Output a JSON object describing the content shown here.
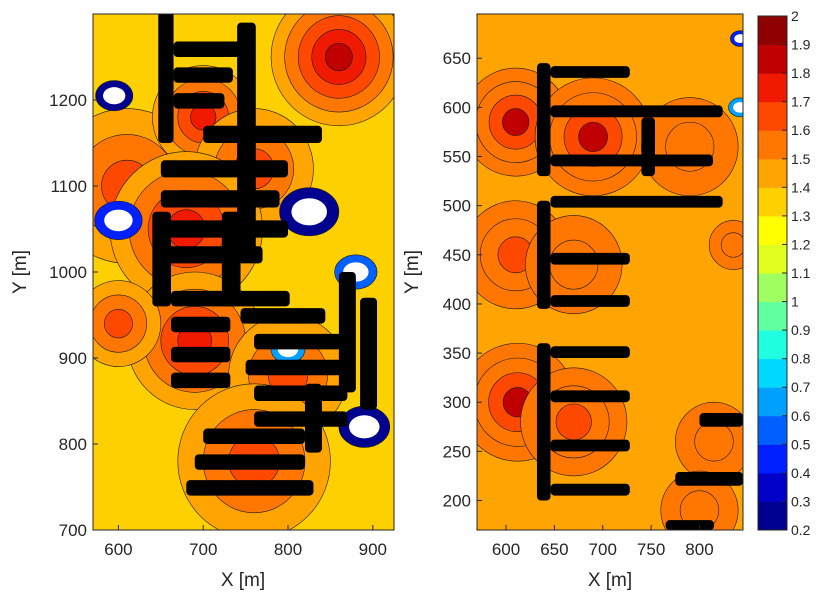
{
  "chart_data": [
    {
      "type": "heatmap",
      "title": "",
      "xlabel": "X [m]",
      "ylabel": "Y [m]",
      "xlim": [
        570,
        925
      ],
      "ylim": [
        700,
        1300
      ],
      "xticks": [
        "600",
        "700",
        "800",
        "900"
      ],
      "yticks": [
        "700",
        "800",
        "900",
        "1000",
        "1100",
        "1200"
      ],
      "ytick_values": [
        700,
        800,
        900,
        1000,
        1100,
        1200
      ],
      "xtick_values": [
        600,
        700,
        800,
        900
      ],
      "grid": false,
      "background_level": 1.35,
      "buildings": [
        {
          "x": 647,
          "y": 1150,
          "w": 18,
          "h": 250
        },
        {
          "x": 740,
          "y": 1020,
          "w": 22,
          "h": 270
        },
        {
          "x": 665,
          "y": 1250,
          "w": 90,
          "h": 18
        },
        {
          "x": 665,
          "y": 1220,
          "w": 70,
          "h": 18
        },
        {
          "x": 665,
          "y": 1190,
          "w": 60,
          "h": 18
        },
        {
          "x": 700,
          "y": 1150,
          "w": 140,
          "h": 20
        },
        {
          "x": 650,
          "y": 1110,
          "w": 150,
          "h": 20
        },
        {
          "x": 650,
          "y": 1075,
          "w": 140,
          "h": 20
        },
        {
          "x": 650,
          "y": 1040,
          "w": 150,
          "h": 20
        },
        {
          "x": 650,
          "y": 1010,
          "w": 120,
          "h": 20
        },
        {
          "x": 640,
          "y": 960,
          "w": 22,
          "h": 110
        },
        {
          "x": 722,
          "y": 960,
          "w": 22,
          "h": 110
        },
        {
          "x": 662,
          "y": 960,
          "w": 140,
          "h": 18
        },
        {
          "x": 662,
          "y": 930,
          "w": 70,
          "h": 18
        },
        {
          "x": 662,
          "y": 895,
          "w": 70,
          "h": 18
        },
        {
          "x": 662,
          "y": 865,
          "w": 70,
          "h": 18
        },
        {
          "x": 744,
          "y": 940,
          "w": 100,
          "h": 18
        },
        {
          "x": 760,
          "y": 910,
          "w": 110,
          "h": 18
        },
        {
          "x": 750,
          "y": 880,
          "w": 120,
          "h": 18
        },
        {
          "x": 760,
          "y": 850,
          "w": 110,
          "h": 18
        },
        {
          "x": 760,
          "y": 820,
          "w": 110,
          "h": 18
        },
        {
          "x": 860,
          "y": 860,
          "w": 20,
          "h": 140
        },
        {
          "x": 885,
          "y": 840,
          "w": 20,
          "h": 130
        },
        {
          "x": 700,
          "y": 800,
          "w": 120,
          "h": 18
        },
        {
          "x": 690,
          "y": 770,
          "w": 130,
          "h": 18
        },
        {
          "x": 680,
          "y": 740,
          "w": 150,
          "h": 18
        },
        {
          "x": 820,
          "y": 790,
          "w": 20,
          "h": 80
        }
      ],
      "hot_zones": [
        {
          "x": 610,
          "y": 1100,
          "r": 90,
          "level": 1.65
        },
        {
          "x": 700,
          "y": 1180,
          "r": 60,
          "level": 1.75
        },
        {
          "x": 760,
          "y": 1120,
          "r": 70,
          "level": 1.7
        },
        {
          "x": 680,
          "y": 1050,
          "r": 90,
          "level": 1.75
        },
        {
          "x": 690,
          "y": 920,
          "r": 80,
          "level": 1.75
        },
        {
          "x": 800,
          "y": 880,
          "r": 70,
          "level": 1.7
        },
        {
          "x": 860,
          "y": 1250,
          "r": 80,
          "level": 1.9
        },
        {
          "x": 760,
          "y": 780,
          "r": 90,
          "level": 1.7
        },
        {
          "x": 600,
          "y": 940,
          "r": 50,
          "level": 1.6
        }
      ],
      "low_zones": [
        {
          "x": 595,
          "y": 1205,
          "r": 22,
          "level": 0.3
        },
        {
          "x": 825,
          "y": 1070,
          "r": 35,
          "level": 0.3
        },
        {
          "x": 600,
          "y": 1060,
          "r": 28,
          "level": 0.4
        },
        {
          "x": 880,
          "y": 1000,
          "r": 25,
          "level": 0.5
        },
        {
          "x": 800,
          "y": 910,
          "r": 20,
          "level": 0.7
        },
        {
          "x": 890,
          "y": 820,
          "r": 30,
          "level": 0.3
        }
      ]
    },
    {
      "type": "heatmap",
      "title": "",
      "xlabel": "X [m]",
      "ylabel": "Y [m]",
      "xlim": [
        570,
        845
      ],
      "ylim": [
        170,
        695
      ],
      "xticks": [
        "600",
        "650",
        "700",
        "750",
        "800"
      ],
      "xtick_values": [
        600,
        650,
        700,
        750,
        800
      ],
      "yticks": [
        "200",
        "250",
        "300",
        "350",
        "400",
        "450",
        "500",
        "550",
        "600",
        "650"
      ],
      "ytick_values": [
        200,
        250,
        300,
        350,
        400,
        450,
        500,
        550,
        600,
        650
      ],
      "grid": false,
      "background_level": 1.4,
      "buildings": [
        {
          "x": 632,
          "y": 530,
          "w": 14,
          "h": 115
        },
        {
          "x": 740,
          "y": 530,
          "w": 14,
          "h": 60
        },
        {
          "x": 632,
          "y": 395,
          "w": 14,
          "h": 110
        },
        {
          "x": 632,
          "y": 200,
          "w": 14,
          "h": 160
        },
        {
          "x": 646,
          "y": 630,
          "w": 82,
          "h": 12
        },
        {
          "x": 646,
          "y": 590,
          "w": 178,
          "h": 12
        },
        {
          "x": 646,
          "y": 540,
          "w": 168,
          "h": 12
        },
        {
          "x": 646,
          "y": 498,
          "w": 178,
          "h": 12
        },
        {
          "x": 646,
          "y": 440,
          "w": 82,
          "h": 12
        },
        {
          "x": 646,
          "y": 397,
          "w": 82,
          "h": 12
        },
        {
          "x": 646,
          "y": 345,
          "w": 82,
          "h": 12
        },
        {
          "x": 646,
          "y": 300,
          "w": 82,
          "h": 12
        },
        {
          "x": 646,
          "y": 250,
          "w": 82,
          "h": 12
        },
        {
          "x": 646,
          "y": 205,
          "w": 82,
          "h": 12
        },
        {
          "x": 800,
          "y": 275,
          "w": 45,
          "h": 14
        },
        {
          "x": 775,
          "y": 215,
          "w": 70,
          "h": 14
        },
        {
          "x": 765,
          "y": 170,
          "w": 50,
          "h": 10
        }
      ],
      "hot_zones": [
        {
          "x": 610,
          "y": 585,
          "r": 55,
          "level": 1.75
        },
        {
          "x": 610,
          "y": 450,
          "r": 55,
          "level": 1.7
        },
        {
          "x": 612,
          "y": 300,
          "r": 60,
          "level": 1.75
        },
        {
          "x": 690,
          "y": 570,
          "r": 60,
          "level": 1.8
        },
        {
          "x": 670,
          "y": 440,
          "r": 50,
          "level": 1.6
        },
        {
          "x": 670,
          "y": 280,
          "r": 55,
          "level": 1.65
        },
        {
          "x": 790,
          "y": 560,
          "r": 50,
          "level": 1.6
        },
        {
          "x": 815,
          "y": 260,
          "r": 40,
          "level": 1.6
        },
        {
          "x": 800,
          "y": 190,
          "r": 40,
          "level": 1.55
        },
        {
          "x": 835,
          "y": 460,
          "r": 25,
          "level": 1.6
        }
      ],
      "low_zones": [
        {
          "x": 842,
          "y": 670,
          "r": 10,
          "level": 0.4
        },
        {
          "x": 842,
          "y": 600,
          "r": 12,
          "level": 0.6
        }
      ]
    }
  ],
  "colorbar": {
    "min": 0.2,
    "max": 2,
    "tick_labels": [
      "2",
      "1.9",
      "1.8",
      "1.7",
      "1.6",
      "1.5",
      "1.4",
      "1.3",
      "1.2",
      "1.1",
      "1",
      "0.9",
      "0.8",
      "0.7",
      "0.6",
      "0.5",
      "0.4",
      "0.3",
      "0.2"
    ],
    "tick_values": [
      2,
      1.9,
      1.8,
      1.7,
      1.6,
      1.5,
      1.4,
      1.3,
      1.2,
      1.1,
      1,
      0.9,
      0.8,
      0.7,
      0.6,
      0.5,
      0.4,
      0.3,
      0.2
    ],
    "colors": [
      "#00008f",
      "#0000c8",
      "#0020ff",
      "#0060ff",
      "#00a0ff",
      "#00d8ff",
      "#20ffdf",
      "#60ffa0",
      "#a0ff60",
      "#e0ff20",
      "#ffff00",
      "#ffd000",
      "#ffa400",
      "#ff7600",
      "#ff4800",
      "#f01a00",
      "#c00000",
      "#8f0000"
    ]
  }
}
